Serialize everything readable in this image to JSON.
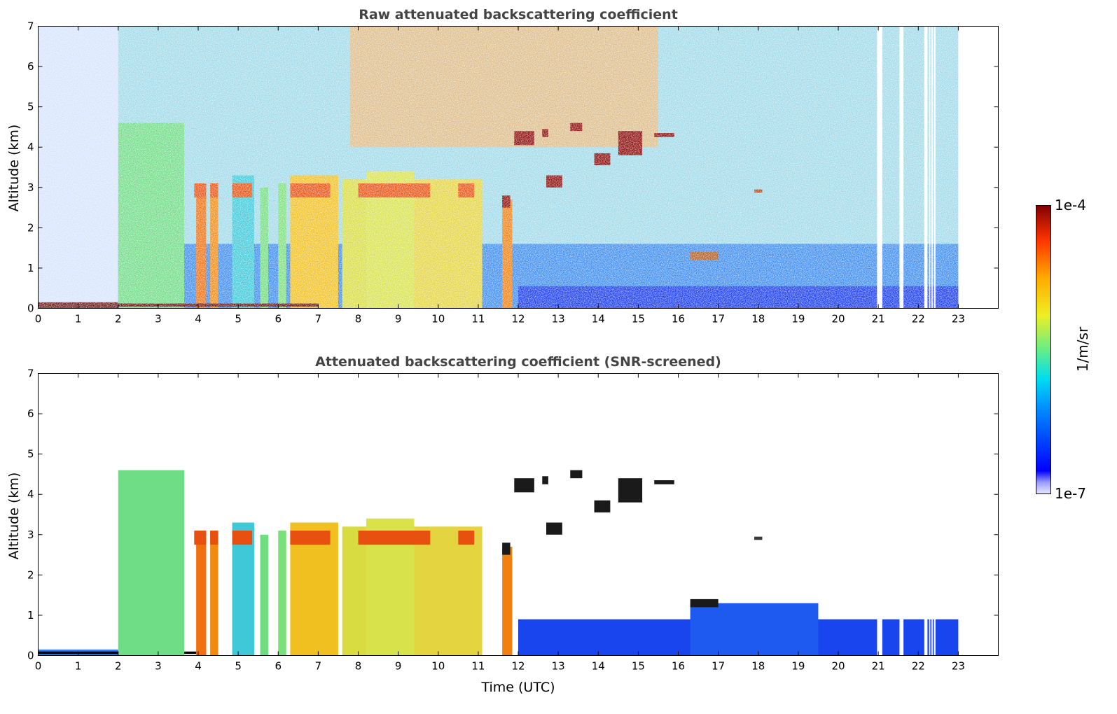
{
  "chart_data": [
    {
      "type": "heatmap",
      "title": "Raw attenuated backscattering coefficient",
      "xlabel": "",
      "ylabel": "Altitude (km)",
      "xlim": [
        0,
        24
      ],
      "ylim": [
        0,
        7
      ],
      "x_ticks": [
        "0",
        "1",
        "2",
        "3",
        "4",
        "5",
        "6",
        "7",
        "8",
        "9",
        "10",
        "11",
        "12",
        "13",
        "14",
        "15",
        "16",
        "17",
        "18",
        "19",
        "20",
        "21",
        "22",
        "23"
      ],
      "y_ticks": [
        "0",
        "1",
        "2",
        "3",
        "4",
        "5",
        "6",
        "7"
      ],
      "data_extent_hours": [
        0,
        23
      ],
      "missing_data_hours": [
        [
          20.97,
          21.1
        ],
        [
          21.53,
          21.63
        ],
        [
          22.15,
          22.23
        ],
        [
          22.27,
          22.3
        ],
        [
          22.33,
          22.36
        ],
        [
          22.39,
          22.43
        ]
      ],
      "screened": false
    },
    {
      "type": "heatmap",
      "title": "Attenuated backscattering coefficient (SNR-screened)",
      "xlabel": "Time (UTC)",
      "ylabel": "Altitude (km)",
      "xlim": [
        0,
        24
      ],
      "ylim": [
        0,
        7
      ],
      "x_ticks": [
        "0",
        "1",
        "2",
        "3",
        "4",
        "5",
        "6",
        "7",
        "8",
        "9",
        "10",
        "11",
        "12",
        "13",
        "14",
        "15",
        "16",
        "17",
        "18",
        "19",
        "20",
        "21",
        "22",
        "23"
      ],
      "y_ticks": [
        "0",
        "1",
        "2",
        "3",
        "4",
        "5",
        "6",
        "7"
      ],
      "data_extent_hours": [
        0,
        23
      ],
      "missing_data_hours": [
        [
          20.97,
          21.1
        ],
        [
          21.53,
          21.63
        ],
        [
          22.15,
          22.23
        ],
        [
          22.27,
          22.3
        ],
        [
          22.33,
          22.36
        ],
        [
          22.39,
          22.43
        ]
      ],
      "screened": true
    }
  ],
  "colorbar": {
    "label": "1/m/sr",
    "max_label": "1e-4",
    "min_label": "1e-7",
    "scale": "log",
    "range": [
      1e-07,
      0.0001
    ]
  }
}
